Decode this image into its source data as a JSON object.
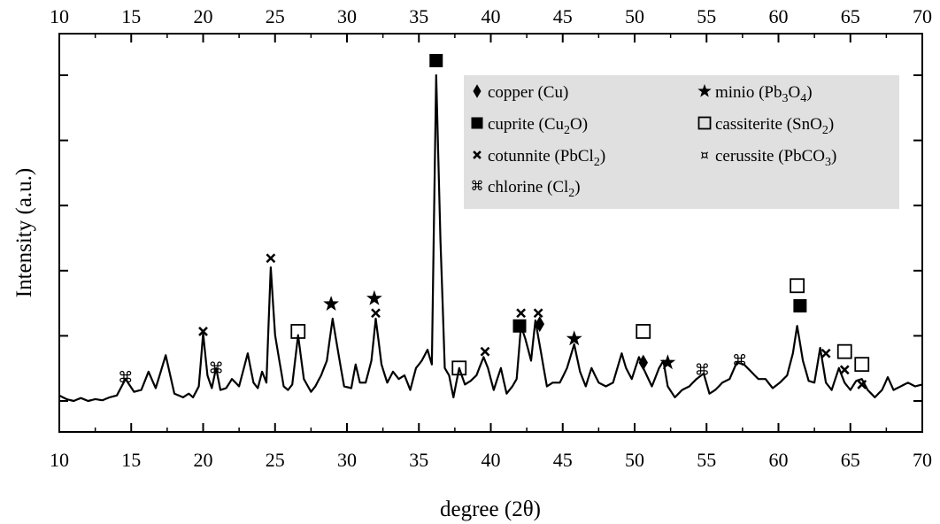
{
  "chart_data": {
    "type": "line",
    "xlabel": "degree (2θ)",
    "ylabel": "Intensity (a.u.)",
    "xlim": [
      10,
      70
    ],
    "ylim": [
      0,
      1
    ],
    "x_ticks": [
      "10",
      "15",
      "20",
      "25",
      "30",
      "35",
      "40",
      "45",
      "50",
      "55",
      "60",
      "65",
      "70"
    ],
    "y_tick_count": 6,
    "y_tick_labels_shown": false,
    "mirror_top_axis": true,
    "grid": false,
    "legend_position": "top-right",
    "legend_background": "#e0e0e0",
    "line_color": "#000000",
    "baseline": 0.11,
    "series": [
      {
        "points": [
          [
            10.0,
            0.125
          ],
          [
            10.5,
            0.115
          ],
          [
            11.0,
            0.11
          ],
          [
            11.5,
            0.118
          ],
          [
            12.0,
            0.11
          ],
          [
            12.5,
            0.115
          ],
          [
            13.0,
            0.112
          ],
          [
            13.5,
            0.12
          ],
          [
            14.0,
            0.125
          ],
          [
            14.6,
            0.17
          ],
          [
            15.2,
            0.135
          ],
          [
            15.7,
            0.14
          ],
          [
            16.2,
            0.19
          ],
          [
            16.7,
            0.145
          ],
          [
            17.4,
            0.235
          ],
          [
            18.0,
            0.13
          ],
          [
            18.6,
            0.12
          ],
          [
            19.0,
            0.13
          ],
          [
            19.3,
            0.12
          ],
          [
            19.7,
            0.15
          ],
          [
            20.0,
            0.295
          ],
          [
            20.3,
            0.18
          ],
          [
            20.6,
            0.145
          ],
          [
            20.9,
            0.2
          ],
          [
            21.2,
            0.14
          ],
          [
            21.6,
            0.145
          ],
          [
            22.0,
            0.17
          ],
          [
            22.5,
            0.15
          ],
          [
            23.1,
            0.24
          ],
          [
            23.5,
            0.16
          ],
          [
            23.8,
            0.145
          ],
          [
            24.1,
            0.19
          ],
          [
            24.4,
            0.16
          ],
          [
            24.7,
            0.475
          ],
          [
            25.0,
            0.29
          ],
          [
            25.3,
            0.22
          ],
          [
            25.6,
            0.15
          ],
          [
            25.9,
            0.14
          ],
          [
            26.2,
            0.155
          ],
          [
            26.6,
            0.29
          ],
          [
            27.0,
            0.17
          ],
          [
            27.5,
            0.135
          ],
          [
            27.8,
            0.15
          ],
          [
            28.2,
            0.18
          ],
          [
            28.6,
            0.22
          ],
          [
            29.0,
            0.335
          ],
          [
            29.4,
            0.24
          ],
          [
            29.8,
            0.15
          ],
          [
            30.3,
            0.145
          ],
          [
            30.6,
            0.21
          ],
          [
            30.9,
            0.16
          ],
          [
            31.3,
            0.16
          ],
          [
            31.7,
            0.22
          ],
          [
            32.0,
            0.335
          ],
          [
            32.4,
            0.21
          ],
          [
            32.8,
            0.16
          ],
          [
            33.2,
            0.19
          ],
          [
            33.6,
            0.17
          ],
          [
            34.0,
            0.18
          ],
          [
            34.4,
            0.14
          ],
          [
            34.8,
            0.2
          ],
          [
            35.2,
            0.22
          ],
          [
            35.6,
            0.25
          ],
          [
            35.9,
            0.21
          ],
          [
            36.2,
            1.0
          ],
          [
            36.5,
            0.55
          ],
          [
            36.8,
            0.2
          ],
          [
            37.1,
            0.18
          ],
          [
            37.4,
            0.12
          ],
          [
            37.8,
            0.2
          ],
          [
            38.2,
            0.155
          ],
          [
            38.6,
            0.165
          ],
          [
            39.0,
            0.18
          ],
          [
            39.5,
            0.23
          ],
          [
            39.8,
            0.2
          ],
          [
            40.2,
            0.14
          ],
          [
            40.7,
            0.2
          ],
          [
            41.1,
            0.13
          ],
          [
            41.5,
            0.15
          ],
          [
            41.8,
            0.17
          ],
          [
            42.1,
            0.315
          ],
          [
            42.4,
            0.28
          ],
          [
            42.8,
            0.22
          ],
          [
            43.1,
            0.33
          ],
          [
            43.5,
            0.24
          ],
          [
            43.9,
            0.15
          ],
          [
            44.3,
            0.16
          ],
          [
            44.8,
            0.16
          ],
          [
            45.3,
            0.2
          ],
          [
            45.8,
            0.265
          ],
          [
            46.2,
            0.19
          ],
          [
            46.6,
            0.15
          ],
          [
            47.0,
            0.2
          ],
          [
            47.5,
            0.16
          ],
          [
            48.0,
            0.15
          ],
          [
            48.5,
            0.16
          ],
          [
            49.1,
            0.24
          ],
          [
            49.4,
            0.2
          ],
          [
            49.8,
            0.17
          ],
          [
            50.3,
            0.23
          ],
          [
            50.6,
            0.2
          ],
          [
            51.2,
            0.15
          ],
          [
            51.7,
            0.2
          ],
          [
            52.0,
            0.22
          ],
          [
            52.3,
            0.15
          ],
          [
            52.8,
            0.12
          ],
          [
            53.3,
            0.14
          ],
          [
            53.8,
            0.15
          ],
          [
            54.3,
            0.17
          ],
          [
            54.8,
            0.185
          ],
          [
            55.2,
            0.13
          ],
          [
            55.6,
            0.14
          ],
          [
            56.1,
            0.16
          ],
          [
            56.6,
            0.17
          ],
          [
            57.1,
            0.215
          ],
          [
            57.6,
            0.21
          ],
          [
            58.1,
            0.19
          ],
          [
            58.6,
            0.17
          ],
          [
            59.1,
            0.17
          ],
          [
            59.6,
            0.145
          ],
          [
            60.1,
            0.16
          ],
          [
            60.6,
            0.18
          ],
          [
            61.0,
            0.24
          ],
          [
            61.3,
            0.315
          ],
          [
            61.7,
            0.22
          ],
          [
            62.1,
            0.165
          ],
          [
            62.5,
            0.16
          ],
          [
            62.9,
            0.255
          ],
          [
            63.3,
            0.16
          ],
          [
            63.7,
            0.14
          ],
          [
            64.2,
            0.2
          ],
          [
            64.6,
            0.16
          ],
          [
            65.0,
            0.14
          ],
          [
            65.4,
            0.165
          ],
          [
            65.8,
            0.17
          ],
          [
            66.2,
            0.14
          ],
          [
            66.7,
            0.12
          ],
          [
            67.2,
            0.14
          ],
          [
            67.6,
            0.175
          ],
          [
            68.0,
            0.14
          ],
          [
            68.5,
            0.15
          ],
          [
            69.0,
            0.16
          ],
          [
            69.5,
            0.15
          ],
          [
            70.0,
            0.155
          ]
        ]
      }
    ],
    "legend": [
      {
        "name": "copper (Cu)",
        "symbol": "♦",
        "text": "copper (Cu)"
      },
      {
        "name": "minio (Pb3O4)",
        "symbol": "★",
        "text": "minio (Pb",
        "sub1": "3",
        "mid": "O",
        "sub2": "4",
        "end": ")"
      },
      {
        "name": "cuprite (Cu2O)",
        "symbol": "■",
        "text": "cuprite (Cu",
        "sub1": "2",
        "mid": "O)",
        "sub2": "",
        "end": ""
      },
      {
        "name": "cassiterite (SnO2)",
        "symbol": "□",
        "text": "cassiterite (SnO",
        "sub1": "2",
        "mid": ")",
        "sub2": "",
        "end": ""
      },
      {
        "name": "cotunnite (PbCl2)",
        "symbol": "×",
        "text": "cotunnite (PbCl",
        "sub1": "2",
        "mid": ")",
        "sub2": "",
        "end": ""
      },
      {
        "name": "cerussite (PbCO3)",
        "symbol": "¤",
        "text": "cerussite (PbCO",
        "sub1": "3",
        "mid": ")",
        "sub2": "",
        "end": ""
      },
      {
        "name": "chlorine (Cl2)",
        "symbol": "⌘",
        "text": "chlorine (Cl",
        "sub1": "2",
        "mid": ")",
        "sub2": "",
        "end": ""
      }
    ],
    "annotations": [
      {
        "x": 14.6,
        "y": 0.175,
        "symbol": "⌘"
      },
      {
        "x": 20.0,
        "y": 0.3,
        "symbol": "×"
      },
      {
        "x": 20.9,
        "y": 0.2,
        "symbol": "⌘"
      },
      {
        "x": 24.7,
        "y": 0.5,
        "symbol": "×"
      },
      {
        "x": 26.6,
        "y": 0.3,
        "symbol": "□"
      },
      {
        "x": 28.9,
        "y": 0.375,
        "symbol": "★"
      },
      {
        "x": 31.9,
        "y": 0.39,
        "symbol": "★"
      },
      {
        "x": 32.0,
        "y": 0.35,
        "symbol": "×"
      },
      {
        "x": 36.2,
        "y": 1.04,
        "symbol": "■"
      },
      {
        "x": 37.8,
        "y": 0.2,
        "symbol": "□"
      },
      {
        "x": 39.6,
        "y": 0.245,
        "symbol": "×"
      },
      {
        "x": 42.1,
        "y": 0.35,
        "symbol": "×"
      },
      {
        "x": 42.0,
        "y": 0.315,
        "symbol": "■"
      },
      {
        "x": 43.3,
        "y": 0.35,
        "symbol": "×"
      },
      {
        "x": 43.4,
        "y": 0.32,
        "symbol": "♦"
      },
      {
        "x": 45.8,
        "y": 0.28,
        "symbol": "★"
      },
      {
        "x": 50.6,
        "y": 0.3,
        "symbol": "□"
      },
      {
        "x": 50.6,
        "y": 0.215,
        "symbol": "♦"
      },
      {
        "x": 52.3,
        "y": 0.215,
        "symbol": "★"
      },
      {
        "x": 54.7,
        "y": 0.195,
        "symbol": "⌘"
      },
      {
        "x": 57.3,
        "y": 0.22,
        "symbol": "⌘"
      },
      {
        "x": 61.3,
        "y": 0.425,
        "symbol": "□"
      },
      {
        "x": 61.5,
        "y": 0.37,
        "symbol": "■"
      },
      {
        "x": 63.3,
        "y": 0.24,
        "symbol": "×"
      },
      {
        "x": 64.6,
        "y": 0.245,
        "symbol": "□"
      },
      {
        "x": 64.6,
        "y": 0.195,
        "symbol": "×"
      },
      {
        "x": 65.8,
        "y": 0.21,
        "symbol": "□"
      },
      {
        "x": 65.8,
        "y": 0.155,
        "symbol": "×"
      }
    ]
  }
}
